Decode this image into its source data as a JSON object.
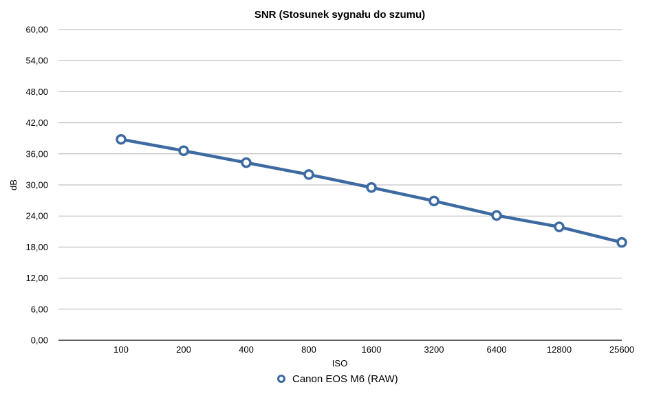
{
  "chart_data": {
    "type": "line",
    "title": "SNR (Stosunek sygnału do szumu)",
    "xlabel": "ISO",
    "ylabel": "dB",
    "categories": [
      "100",
      "200",
      "400",
      "800",
      "1600",
      "3200",
      "6400",
      "12800",
      "25600"
    ],
    "y_tick_labels": [
      "0,00",
      "6,00",
      "12,00",
      "18,00",
      "24,00",
      "30,00",
      "36,00",
      "42,00",
      "48,00",
      "54,00",
      "60,00"
    ],
    "ylim": [
      0,
      60
    ],
    "y_step": 6,
    "grid": true,
    "legend": "bottom",
    "series": [
      {
        "name": "Canon EOS M6 (RAW)",
        "color": "#3c6aa1",
        "marker": "circle-open",
        "values": [
          38.8,
          36.6,
          34.3,
          32.0,
          29.5,
          26.9,
          24.1,
          21.9,
          18.9
        ]
      }
    ]
  }
}
